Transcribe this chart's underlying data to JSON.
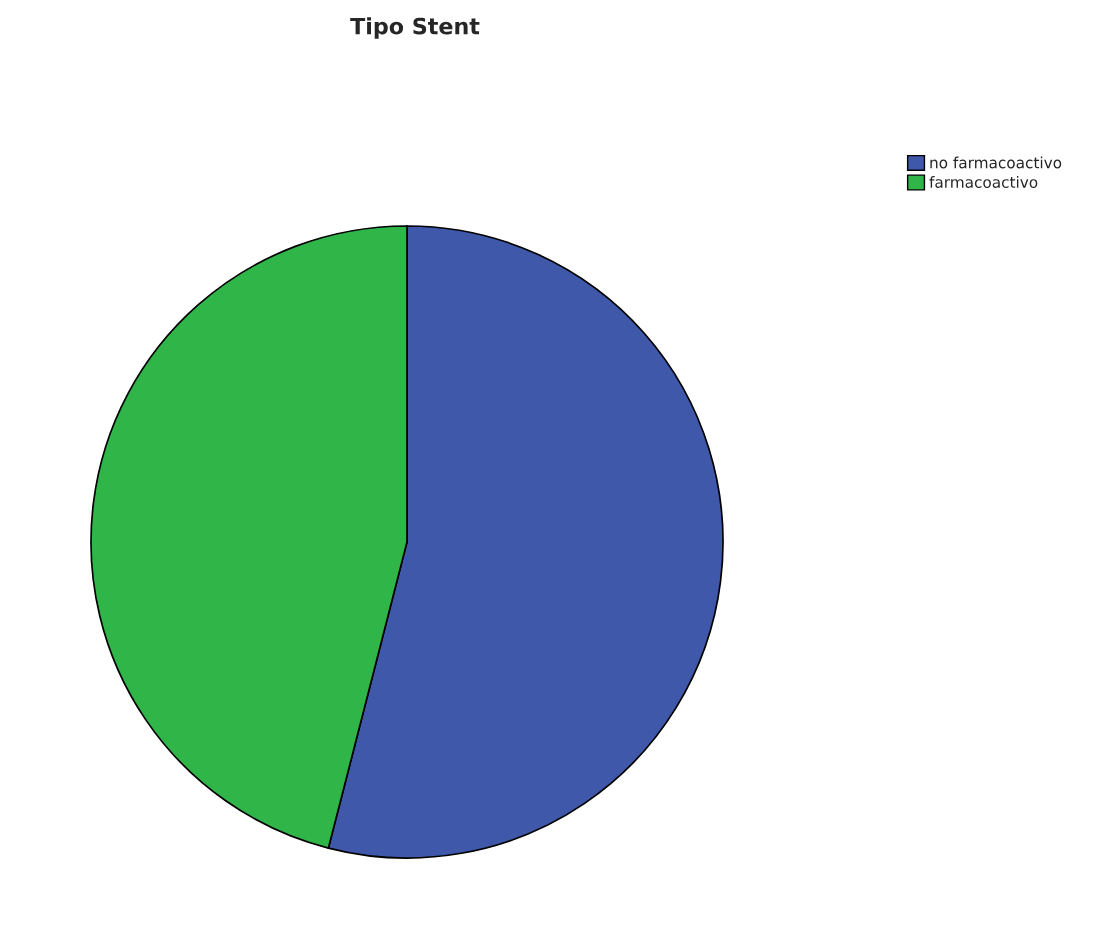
{
  "chart_data": {
    "type": "pie",
    "title": "Tipo Stent",
    "categories": [
      "no farmacoactivo",
      "farmacoactivo"
    ],
    "values": [
      54,
      46
    ],
    "colors": [
      "#3f58aa",
      "#2fb548"
    ],
    "legend": "top right"
  }
}
